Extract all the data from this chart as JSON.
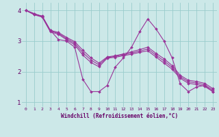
{
  "xlabel": "Windchill (Refroidissement éolien,°C)",
  "xlim": [
    -0.5,
    23.5
  ],
  "ylim": [
    0.85,
    4.25
  ],
  "xticks": [
    0,
    1,
    2,
    3,
    4,
    5,
    6,
    7,
    8,
    9,
    10,
    11,
    12,
    13,
    14,
    15,
    16,
    17,
    18,
    19,
    20,
    21,
    22,
    23
  ],
  "yticks": [
    1,
    2,
    3,
    4
  ],
  "background_color": "#cce8e8",
  "grid_color": "#99cccc",
  "line_color": "#993399",
  "figsize": [
    3.2,
    2.0
  ],
  "dpi": 100,
  "series": [
    {
      "x": [
        0,
        1,
        2,
        3,
        4,
        5,
        6,
        7,
        8,
        9,
        10,
        11,
        12,
        13,
        14,
        15,
        16,
        17,
        18,
        19,
        20,
        21,
        22,
        23
      ],
      "y": [
        4.0,
        3.9,
        3.8,
        3.35,
        3.05,
        3.0,
        2.8,
        1.75,
        1.35,
        1.35,
        1.55,
        2.15,
        2.45,
        2.8,
        3.3,
        3.72,
        3.4,
        3.0,
        2.45,
        1.6,
        1.35,
        1.5,
        1.55,
        1.35
      ]
    },
    {
      "x": [
        0,
        1,
        2,
        3,
        4,
        5,
        6,
        7,
        8,
        9,
        10,
        11,
        12,
        13,
        14,
        15,
        16,
        17,
        18,
        19,
        20,
        21,
        22,
        23
      ],
      "y": [
        4.0,
        3.88,
        3.82,
        3.35,
        3.28,
        3.12,
        2.98,
        2.7,
        2.45,
        2.28,
        2.48,
        2.52,
        2.58,
        2.65,
        2.72,
        2.8,
        2.6,
        2.42,
        2.2,
        1.88,
        1.72,
        1.68,
        1.62,
        1.45
      ]
    },
    {
      "x": [
        0,
        1,
        2,
        3,
        4,
        5,
        6,
        7,
        8,
        9,
        10,
        11,
        12,
        13,
        14,
        15,
        16,
        17,
        18,
        19,
        20,
        21,
        22,
        23
      ],
      "y": [
        4.0,
        3.87,
        3.8,
        3.33,
        3.25,
        3.08,
        2.93,
        2.62,
        2.38,
        2.22,
        2.46,
        2.5,
        2.55,
        2.61,
        2.67,
        2.74,
        2.54,
        2.35,
        2.14,
        1.83,
        1.67,
        1.63,
        1.57,
        1.4
      ]
    },
    {
      "x": [
        0,
        1,
        2,
        3,
        4,
        5,
        6,
        7,
        8,
        9,
        10,
        11,
        12,
        13,
        14,
        15,
        16,
        17,
        18,
        19,
        20,
        21,
        22,
        23
      ],
      "y": [
        4.0,
        3.86,
        3.78,
        3.3,
        3.22,
        3.04,
        2.88,
        2.54,
        2.3,
        2.16,
        2.44,
        2.47,
        2.52,
        2.57,
        2.63,
        2.68,
        2.48,
        2.28,
        2.08,
        1.78,
        1.62,
        1.58,
        1.52,
        1.35
      ]
    }
  ]
}
